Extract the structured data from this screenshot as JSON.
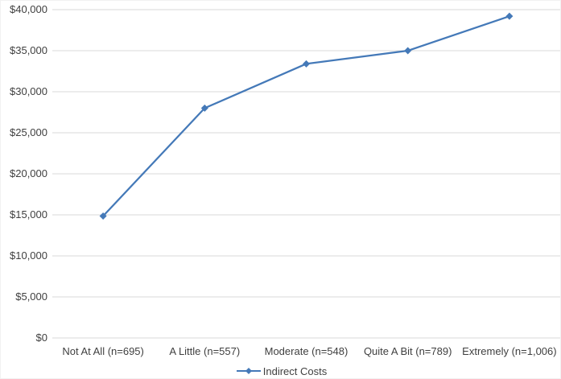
{
  "chart_data": {
    "type": "line",
    "categories": [
      "Not At All (n=695)",
      "A Little (n=557)",
      "Moderate (n=548)",
      "Quite A Bit (n=789)",
      "Extremely (n=1,006)"
    ],
    "series": [
      {
        "name": "Indirect Costs",
        "values": [
          14850,
          28000,
          33400,
          35000,
          39200
        ],
        "color": "#4479b8",
        "marker": "diamond"
      }
    ],
    "xlabel": "",
    "ylabel": "",
    "ylim": [
      0,
      40000
    ],
    "y_tick_step": 5000,
    "y_ticks": [
      "$0",
      "$5,000",
      "$10,000",
      "$15,000",
      "$20,000",
      "$25,000",
      "$30,000",
      "$35,000",
      "$40,000"
    ],
    "grid": true,
    "legend": {
      "position": "bottom-center",
      "entries": [
        "Indirect Costs"
      ]
    },
    "colors": {
      "background": "#ffffff",
      "gridline": "#d9d9d9",
      "axis_text": "#3f3f3f",
      "series": "#4479b8"
    }
  }
}
